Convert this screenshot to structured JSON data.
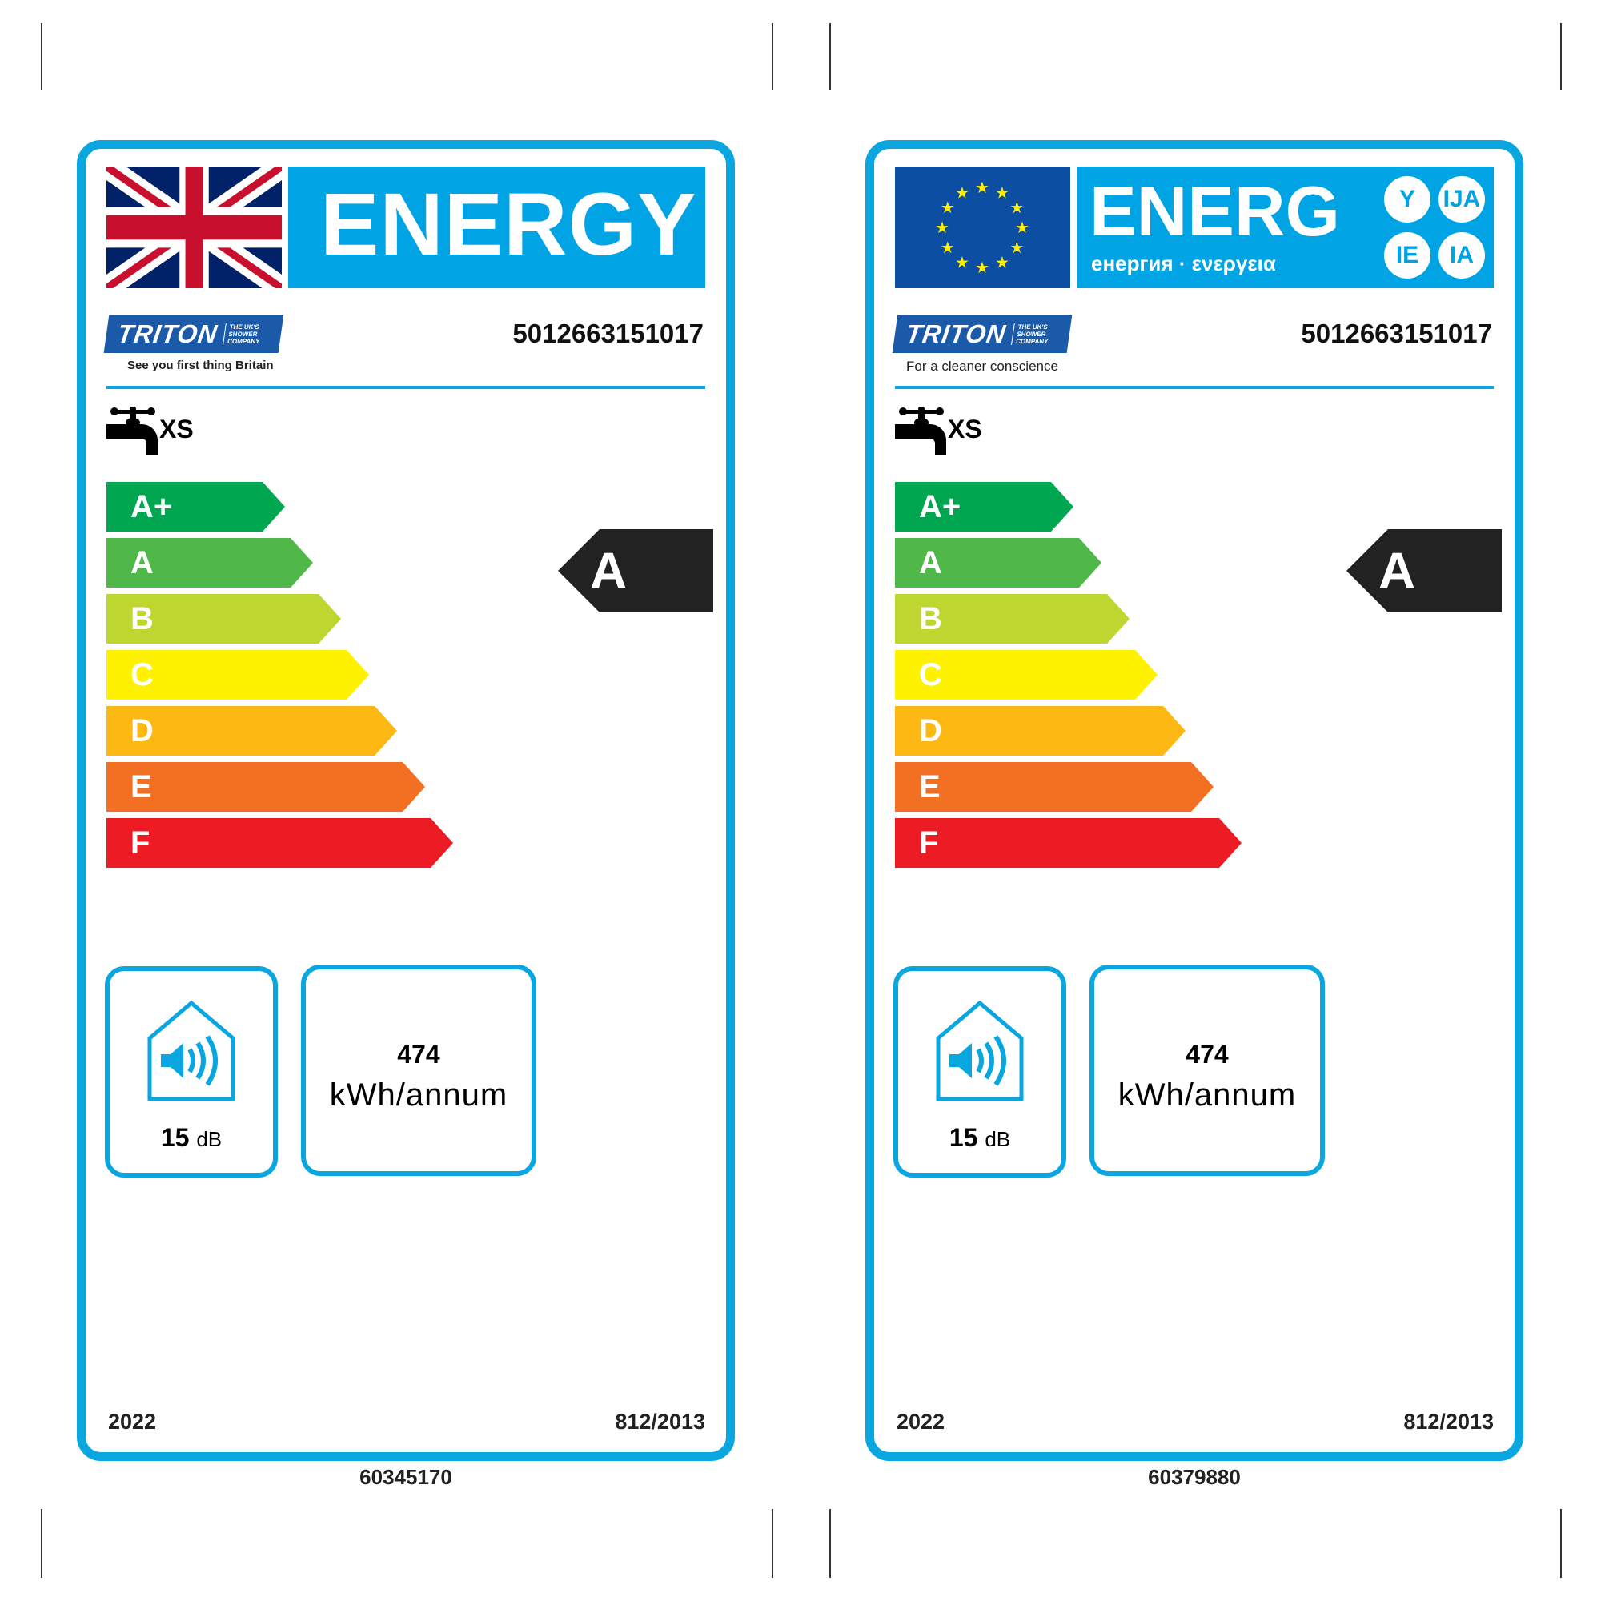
{
  "colors": {
    "border": "#0aa6e0",
    "banner": "#00a3e4",
    "eu_blue": "#0b4ea2",
    "indicator": "#222222"
  },
  "scale": [
    {
      "cls": "A+",
      "color": "#00a650"
    },
    {
      "cls": "A",
      "color": "#50b848"
    },
    {
      "cls": "B",
      "color": "#bed630"
    },
    {
      "cls": "C",
      "color": "#fff200"
    },
    {
      "cls": "D",
      "color": "#fdb813"
    },
    {
      "cls": "E",
      "color": "#f36f21"
    },
    {
      "cls": "F",
      "color": "#ed1c24"
    }
  ],
  "labels": [
    {
      "variant": "uk",
      "banner_title": "ENERGY",
      "brand": "TRITON",
      "brand_sub": "THE UK'S SHOWER COMPANY",
      "tagline": "See you first thing Britain",
      "ean": "5012663151017",
      "load_profile": "XS",
      "rating": "A",
      "noise_value": "15",
      "noise_unit": "dB",
      "energy_value": "474",
      "energy_unit": "kWh/annum",
      "year": "2022",
      "regulation": "812/2013",
      "code": "60345170"
    },
    {
      "variant": "eu",
      "banner_title": "ENERG",
      "banner_sub": "енергия · ενεργεια",
      "suffixes": [
        "Y",
        "IJA",
        "IE",
        "IA"
      ],
      "brand": "TRITON",
      "brand_sub": "THE UK'S SHOWER COMPANY",
      "tagline": "For a cleaner conscience",
      "ean": "5012663151017",
      "load_profile": "XS",
      "rating": "A",
      "noise_value": "15",
      "noise_unit": "dB",
      "energy_value": "474",
      "energy_unit": "kWh/annum",
      "year": "2022",
      "regulation": "812/2013",
      "code": "60379880"
    }
  ]
}
